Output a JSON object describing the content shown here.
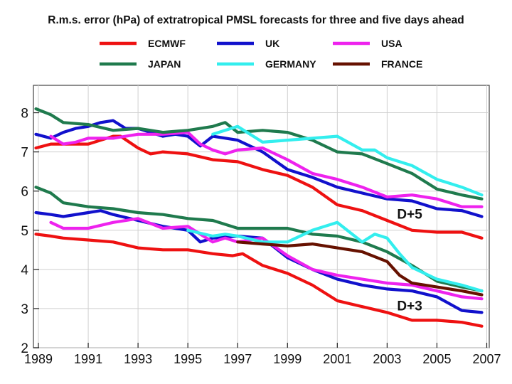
{
  "chart_data": {
    "type": "line",
    "title": "R.m.s. error (hPa) of extratropical PMSL forecasts for three and five days ahead",
    "xlabel": "",
    "ylabel": "",
    "xlim": [
      1988.8,
      2007.1
    ],
    "ylim": [
      2,
      8.7
    ],
    "x_ticks": [
      "1989",
      "1991",
      "1993",
      "1995",
      "1997",
      "1999",
      "2001",
      "2003",
      "2005",
      "2007"
    ],
    "y_ticks": [
      "2",
      "3",
      "4",
      "5",
      "6",
      "7",
      "8"
    ],
    "grid": true,
    "legend": [
      {
        "name": "ECMWF",
        "color": "#ee1111"
      },
      {
        "name": "UK",
        "color": "#1111cc"
      },
      {
        "name": "USA",
        "color": "#ee22ee"
      },
      {
        "name": "JAPAN",
        "color": "#1f7a4d"
      },
      {
        "name": "GERMANY",
        "color": "#33eeee"
      },
      {
        "name": "FRANCE",
        "color": "#661100"
      }
    ],
    "annotations": [
      {
        "text": "D+5",
        "x": 2003.4,
        "y": 5.3
      },
      {
        "text": "D+3",
        "x": 2003.4,
        "y": 2.95
      }
    ],
    "series": [
      {
        "name": "ECMWF",
        "lead": "D+5",
        "color": "#ee1111",
        "x": [
          1988.9,
          1989.5,
          1990,
          1991,
          1992,
          1992.3,
          1993,
          1993.5,
          1994,
          1995,
          1996,
          1997,
          1998,
          1999,
          2000,
          2001,
          2002,
          2003,
          2004,
          2005,
          2006,
          2006.8
        ],
        "y": [
          7.1,
          7.2,
          7.2,
          7.2,
          7.4,
          7.4,
          7.1,
          6.95,
          7.0,
          6.95,
          6.8,
          6.75,
          6.55,
          6.4,
          6.1,
          5.65,
          5.5,
          5.25,
          5.0,
          4.95,
          4.95,
          4.8
        ]
      },
      {
        "name": "UK",
        "lead": "D+5",
        "color": "#1111cc",
        "x": [
          1988.9,
          1989.5,
          1990,
          1990.5,
          1991,
          1991.5,
          1992,
          1992.5,
          1993,
          1994,
          1994.5,
          1995,
          1995.5,
          1996,
          1997,
          1998,
          1999,
          2000,
          2001,
          2002,
          2003,
          2004,
          2005,
          2006,
          2006.8
        ],
        "y": [
          7.45,
          7.35,
          7.5,
          7.6,
          7.65,
          7.75,
          7.8,
          7.6,
          7.6,
          7.4,
          7.45,
          7.4,
          7.15,
          7.4,
          7.3,
          7.0,
          6.55,
          6.35,
          6.1,
          5.95,
          5.8,
          5.75,
          5.55,
          5.5,
          5.35
        ]
      },
      {
        "name": "USA",
        "lead": "D+5",
        "color": "#ee22ee",
        "x": [
          1989.5,
          1990,
          1990.5,
          1991,
          1992,
          1993,
          1994,
          1995,
          1995.5,
          1996,
          1996.5,
          1997,
          1998,
          1999,
          2000,
          2001,
          2002,
          2003,
          2004,
          2005,
          2006,
          2006.8
        ],
        "y": [
          7.4,
          7.2,
          7.25,
          7.35,
          7.35,
          7.45,
          7.45,
          7.5,
          7.2,
          7.05,
          6.95,
          7.05,
          7.1,
          6.8,
          6.45,
          6.3,
          6.1,
          5.85,
          5.9,
          5.8,
          5.6,
          5.6
        ]
      },
      {
        "name": "JAPAN",
        "lead": "D+5",
        "color": "#1f7a4d",
        "x": [
          1988.9,
          1989.5,
          1990,
          1991,
          1992,
          1993,
          1994,
          1995,
          1996,
          1996.5,
          1997,
          1998,
          1999,
          2000,
          2001,
          2002,
          2003,
          2004,
          2005,
          2006,
          2006.8
        ],
        "y": [
          8.1,
          7.95,
          7.75,
          7.7,
          7.55,
          7.6,
          7.5,
          7.55,
          7.65,
          7.75,
          7.5,
          7.55,
          7.5,
          7.3,
          7.0,
          6.95,
          6.7,
          6.45,
          6.05,
          5.9,
          5.8
        ]
      },
      {
        "name": "GERMANY",
        "lead": "D+5",
        "color": "#33eeee",
        "x": [
          1996,
          1996.5,
          1997,
          1998,
          1999,
          2000,
          2001,
          2002,
          2002.5,
          2003,
          2004,
          2005,
          2006,
          2006.8
        ],
        "y": [
          7.45,
          7.55,
          7.65,
          7.25,
          7.3,
          7.35,
          7.4,
          7.05,
          7.05,
          6.85,
          6.65,
          6.3,
          6.1,
          5.9
        ]
      },
      {
        "name": "ECMWF",
        "lead": "D+3",
        "color": "#ee1111",
        "x": [
          1988.9,
          1989.5,
          1990,
          1991,
          1992,
          1993,
          1994,
          1995,
          1996,
          1996.8,
          1997.2,
          1998,
          1999,
          2000,
          2001,
          2002,
          2003,
          2004,
          2005,
          2006,
          2006.8
        ],
        "y": [
          4.9,
          4.85,
          4.8,
          4.75,
          4.7,
          4.55,
          4.5,
          4.5,
          4.4,
          4.35,
          4.4,
          4.1,
          3.9,
          3.6,
          3.2,
          3.05,
          2.9,
          2.7,
          2.7,
          2.65,
          2.55
        ]
      },
      {
        "name": "UK",
        "lead": "D+3",
        "color": "#1111cc",
        "x": [
          1988.9,
          1989.5,
          1990,
          1991,
          1991.5,
          1992,
          1993,
          1994,
          1995,
          1995.5,
          1996,
          1997,
          1998,
          1999,
          2000,
          2001,
          2002,
          2003,
          2004,
          2005,
          2006,
          2006.8
        ],
        "y": [
          5.45,
          5.4,
          5.35,
          5.45,
          5.5,
          5.4,
          5.25,
          5.1,
          5.0,
          4.7,
          4.8,
          4.85,
          4.8,
          4.3,
          4.0,
          3.75,
          3.6,
          3.5,
          3.45,
          3.3,
          2.95,
          2.9
        ]
      },
      {
        "name": "USA",
        "lead": "D+3",
        "color": "#ee22ee",
        "x": [
          1989.5,
          1990,
          1991,
          1992,
          1993,
          1994,
          1995,
          1996,
          1996.5,
          1997,
          1998,
          1999,
          2000,
          2001,
          2002,
          2003,
          2004,
          2005,
          2006,
          2006.8
        ],
        "y": [
          5.2,
          5.05,
          5.05,
          5.2,
          5.3,
          5.05,
          5.1,
          4.7,
          4.8,
          4.7,
          4.8,
          4.35,
          4.0,
          3.85,
          3.75,
          3.65,
          3.6,
          3.45,
          3.3,
          3.25
        ]
      },
      {
        "name": "JAPAN",
        "lead": "D+3",
        "color": "#1f7a4d",
        "x": [
          1988.9,
          1989.5,
          1990,
          1991,
          1992,
          1993,
          1994,
          1995,
          1996,
          1997,
          1998,
          1999,
          2000,
          2001,
          2002,
          2003,
          2004,
          2005,
          2006,
          2006.8
        ],
        "y": [
          6.1,
          5.95,
          5.7,
          5.6,
          5.55,
          5.45,
          5.4,
          5.3,
          5.25,
          5.05,
          5.05,
          5.05,
          4.9,
          4.85,
          4.7,
          4.45,
          4.1,
          3.7,
          3.55,
          3.45
        ]
      },
      {
        "name": "GERMANY",
        "lead": "D+3",
        "color": "#33eeee",
        "x": [
          1995,
          1996,
          1996.5,
          1997,
          1998,
          1999,
          2000,
          2001,
          2002,
          2002.5,
          2003,
          2003.5,
          2004,
          2005,
          2006,
          2006.8
        ],
        "y": [
          5.0,
          4.85,
          4.9,
          4.85,
          4.7,
          4.7,
          5.0,
          5.2,
          4.7,
          4.9,
          4.8,
          4.4,
          4.05,
          3.75,
          3.6,
          3.45
        ]
      },
      {
        "name": "FRANCE",
        "lead": "D+3",
        "color": "#661100",
        "x": [
          1997,
          1998,
          1999,
          2000,
          2001,
          2002,
          2003,
          2003.5,
          2004,
          2005,
          2006,
          2006.8
        ],
        "y": [
          4.7,
          4.65,
          4.6,
          4.65,
          4.55,
          4.45,
          4.2,
          3.85,
          3.65,
          3.55,
          3.45,
          3.35
        ]
      }
    ]
  }
}
